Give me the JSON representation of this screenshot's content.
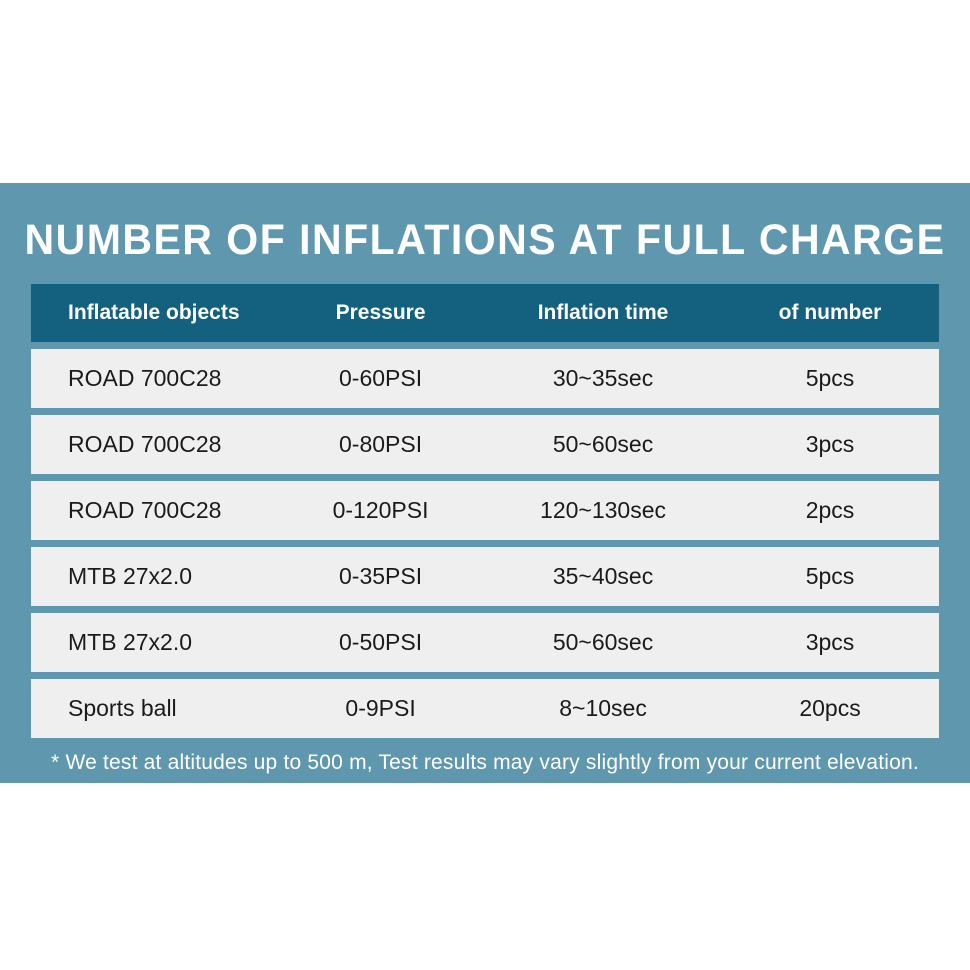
{
  "title": "NUMBER OF INFLATIONS AT FULL CHARGE",
  "chart_data": {
    "type": "table",
    "title": "NUMBER OF INFLATIONS AT FULL CHARGE",
    "columns": [
      "Inflatable objects",
      "Pressure",
      "Inflation time",
      "of number"
    ],
    "rows": [
      [
        "ROAD 700C28",
        "0-60PSI",
        "30~35sec",
        "5pcs"
      ],
      [
        "ROAD 700C28",
        "0-80PSI",
        "50~60sec",
        "3pcs"
      ],
      [
        "ROAD 700C28",
        "0-120PSI",
        "120~130sec",
        "2pcs"
      ],
      [
        "MTB 27x2.0",
        "0-35PSI",
        "35~40sec",
        "5pcs"
      ],
      [
        "MTB 27x2.0",
        "0-50PSI",
        "50~60sec",
        "3pcs"
      ],
      [
        "Sports ball",
        "0-9PSI",
        "8~10sec",
        "20pcs"
      ]
    ],
    "footnote": "* We test at altitudes up to 500 m, Test results may vary slightly from your current elevation."
  },
  "colors": {
    "panel_bg": "#5f98ae",
    "header_bg": "#14617f",
    "row_bg": "#efefef",
    "row_text": "#1b1b1b",
    "light_text": "#ffffff"
  }
}
